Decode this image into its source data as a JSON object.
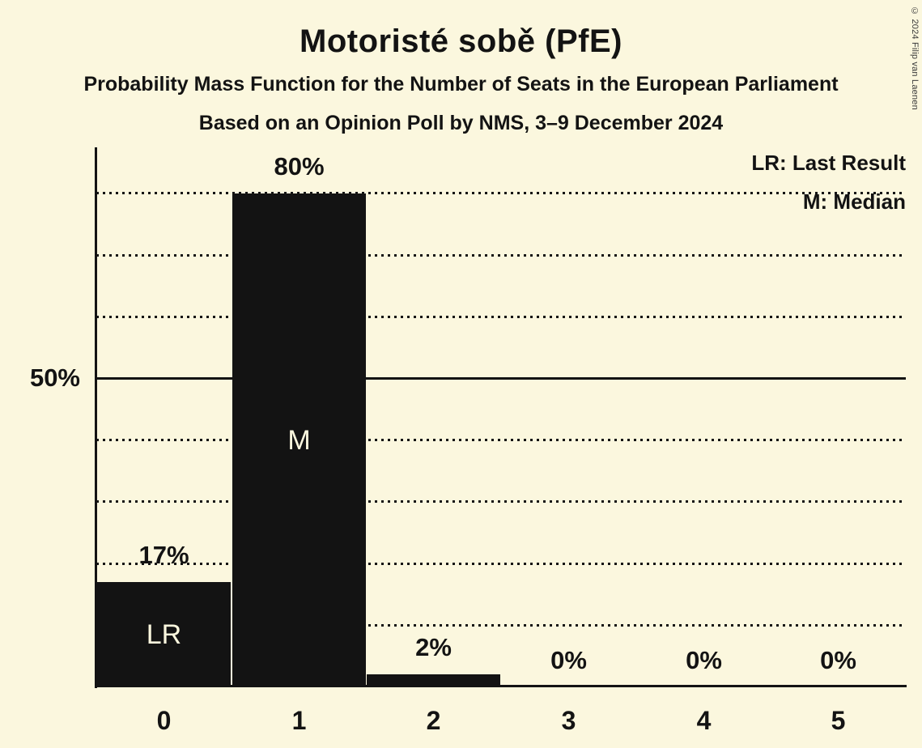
{
  "title": "Motoristé sobě (PfE)",
  "subtitles": [
    "Probability Mass Function for the Number of Seats in the European Parliament",
    "Based on an Opinion Poll by NMS, 3–9 December 2024"
  ],
  "copyright": "© 2024 Filip van Laenen",
  "colors": {
    "background": "#FBF7DE",
    "ink": "#131313",
    "bar": "#131313",
    "bar_inner_label": "#FBF7DE"
  },
  "chart_data": {
    "type": "bar",
    "title": "Motoristé sobě (PfE)",
    "subtitle": "Probability Mass Function for the Number of Seats in the European Parliament",
    "source_line": "Based on an Opinion Poll by NMS, 3–9 December 2024",
    "categories": [
      "0",
      "1",
      "2",
      "3",
      "4",
      "5"
    ],
    "values": [
      17,
      80,
      2,
      0,
      0,
      0
    ],
    "value_labels": [
      "17%",
      "80%",
      "2%",
      "0%",
      "0%",
      "0%"
    ],
    "bar_annotations": [
      "LR",
      "M",
      null,
      null,
      null,
      null
    ],
    "y_axis": {
      "tick_label": "50%",
      "tick_value": 50,
      "solid_line_at": 50,
      "dotted_gridlines_at": [
        10,
        20,
        30,
        40,
        60,
        70,
        80
      ],
      "ylim": [
        0,
        87.5
      ]
    },
    "legend": [
      {
        "abbr": "LR",
        "label": "LR: Last Result"
      },
      {
        "abbr": "M",
        "label": "M: Median"
      }
    ],
    "grid": "dotted horizontal lines, solid line at 50%",
    "legend_position": "top-right"
  }
}
